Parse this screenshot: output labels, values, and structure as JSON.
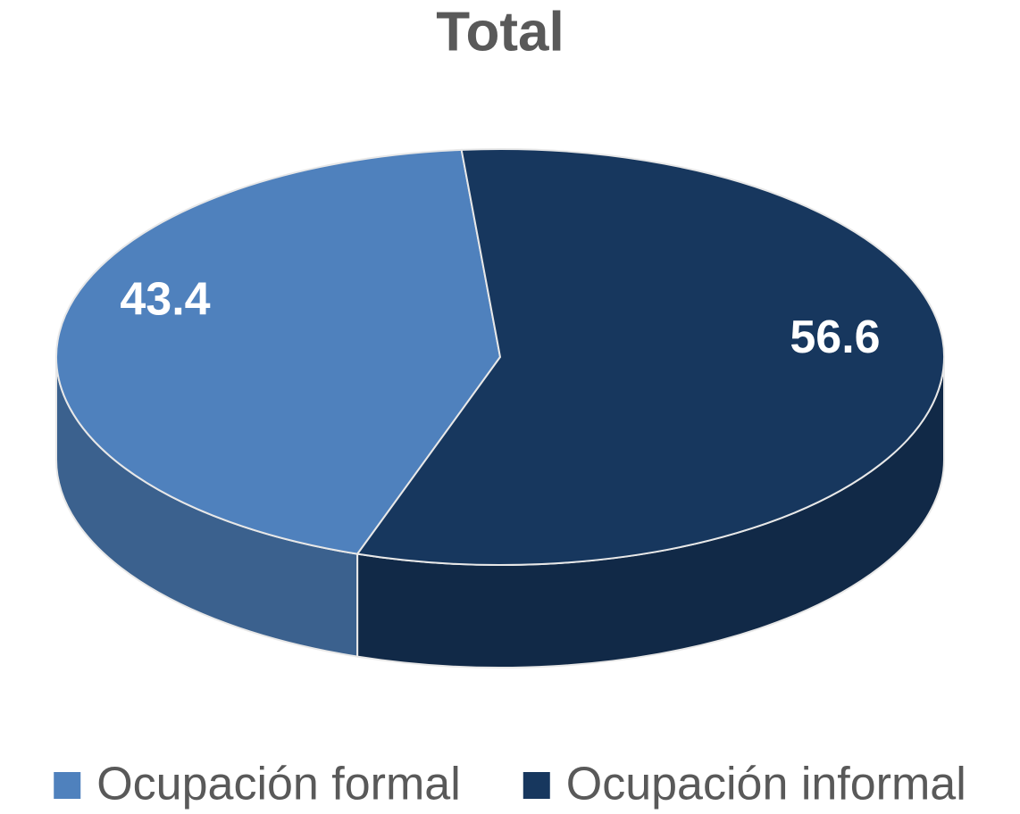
{
  "chart_data": {
    "type": "pie",
    "title": "Total",
    "categories": [
      "Ocupación formal",
      "Ocupación informal"
    ],
    "values": [
      43.4,
      56.6
    ],
    "colors": [
      "#4f81bd",
      "#17375e"
    ],
    "legend": "bottom"
  }
}
